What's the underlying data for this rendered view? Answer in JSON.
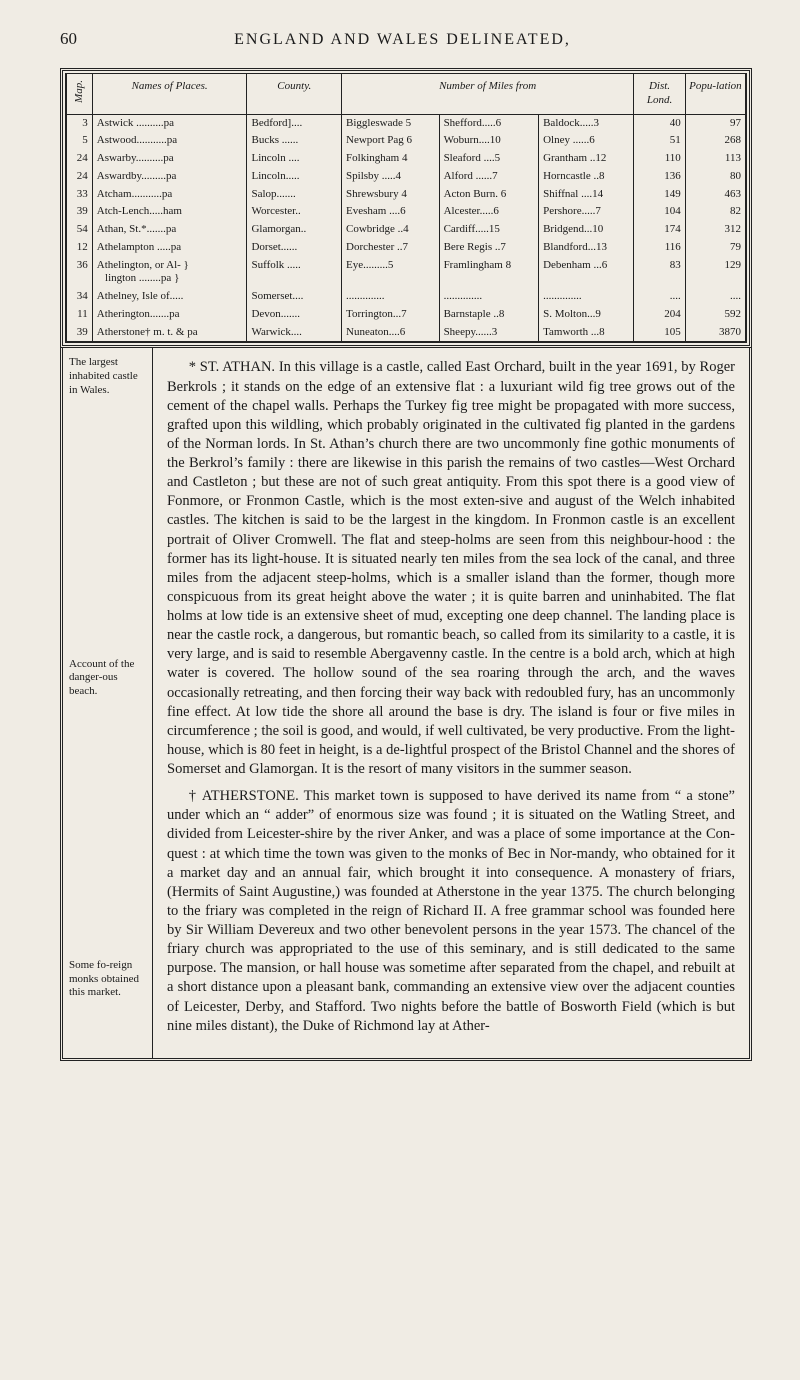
{
  "page_number": "60",
  "running_title": "ENGLAND AND WALES DELINEATED,",
  "table": {
    "headers": {
      "map": "Map.",
      "names": "Names of Places.",
      "county": "County.",
      "number": "Number of Miles from",
      "dist": "Dist. Lond.",
      "pop": "Popu-lation"
    },
    "rows": [
      {
        "map": "3",
        "name": "Astwick ..........pa",
        "county": "Bedford]....",
        "num": "Biggleswade 5 | Shefford.....6 | Baldock.....3",
        "dist": "40",
        "pop": "97"
      },
      {
        "map": "5",
        "name": "Astwood...........pa",
        "county": "Bucks ......",
        "num": "Newport Pag 6 | Woburn....10 | Olney ......6",
        "dist": "51",
        "pop": "268"
      },
      {
        "map": "24",
        "name": "Aswarby..........pa",
        "county": "Lincoln ....",
        "num": "Folkingham  4 | Sleaford ....5 | Grantham ..12",
        "dist": "110",
        "pop": "113"
      },
      {
        "map": "24",
        "name": "Aswardby.........pa",
        "county": "Lincoln.....",
        "num": "Spilsby .....4 | Alford ......7 | Horncastle ..8",
        "dist": "136",
        "pop": "80"
      },
      {
        "map": "33",
        "name": "Atcham...........pa",
        "county": "Salop.......",
        "num": "Shrewsbury 4 | Acton Burn. 6 | Shiffnal ....14",
        "dist": "149",
        "pop": "463"
      },
      {
        "map": "39",
        "name": "Atch-Lench.....ham",
        "county": "Worcester..",
        "num": "Evesham ....6 | Alcester.....6 | Pershore.....7",
        "dist": "104",
        "pop": "82"
      },
      {
        "map": "54",
        "name": "Athan, St.*.......pa",
        "county": "Glamorgan..",
        "num": "Cowbridge ..4 | Cardiff.....15 | Bridgend...10",
        "dist": "174",
        "pop": "312"
      },
      {
        "map": "12",
        "name": "Athelampton .....pa",
        "county": "Dorset......",
        "num": "Dorchester ..7 | Bere Regis ..7 | Blandford...13",
        "dist": "116",
        "pop": "79"
      },
      {
        "map": "36",
        "name": "Athelington, or Al- }\n   lington ........pa }",
        "county": "Suffolk .....",
        "num": "Eye.........5 | Framlingham 8 | Debenham ...6",
        "dist": "83",
        "pop": "129"
      },
      {
        "map": "34",
        "name": "Athelney, Isle of.....",
        "county": "Somerset....",
        "num": ".............. | .............. | ..............",
        "dist": "....",
        "pop": "...."
      },
      {
        "map": "11",
        "name": "Atherington.......pa",
        "county": "Devon.......",
        "num": "Torrington...7 | Barnstaple ..8 | S. Molton...9",
        "dist": "204",
        "pop": "592"
      },
      {
        "map": "39",
        "name": "Atherstone† m. t. & pa",
        "county": "Warwick....",
        "num": "Nuneaton....6 | Sheepy......3 | Tamworth ...8",
        "dist": "105",
        "pop": "3870"
      }
    ]
  },
  "side": {
    "block1": "The largest inhabited castle in Wales.",
    "block2": "Account of the danger-ous beach.",
    "block3": "Some fo-reign monks obtained this market."
  },
  "article": {
    "p1": "* ST. ATHAN.   In this village is a castle, called East Orchard, built in the year 1691, by Roger Berkrols ; it stands on the edge of an extensive flat : a luxuriant wild fig tree grows out of the cement of the chapel walls. Perhaps the Turkey fig tree might be propagated with more success, grafted upon this wildling, which probably originated in the cultivated fig planted in the gardens of the Norman lords.  In St. Athan’s church there are two uncommonly fine gothic monuments of the Berkrol’s family : there are likewise in this parish the remains of two castles—West Orchard and Castleton ; but these are not of such great antiquity.  From this spot there is a good view of Fonmore, or Fronmon Castle, which is the most exten-sive and august of the Welch inhabited castles.  The kitchen is said to be the largest in the kingdom.  In Fronmon castle is an excellent portrait of Oliver Cromwell.  The flat and steep-holms are seen from this neighbour-hood : the former has its light-house.  It is situated nearly ten miles from the sea lock of the canal, and three miles from the adjacent steep-holms, which is a smaller island than the former, though more conspicuous from its great height above the water ; it is quite barren and uninhabited.  The flat holms at low tide is an extensive sheet of mud, excepting one deep channel.  The landing place is near the castle rock, a dangerous, but romantic beach, so called from its similarity to a castle, it is very large, and is said to resemble Abergavenny castle.  In the centre is a bold arch, which at high water is covered.  The hollow sound of the sea roaring through the arch, and the waves occasionally retreating, and then forcing their way back with redoubled fury, has an uncommonly fine effect.  At low tide the shore all around the base is dry.  The island is four or five miles in circumference ; the soil is good, and would, if well cultivated, be very productive.  From the light-house, which is 80 feet in height, is a de-lightful prospect of the Bristol Channel and the shores of Somerset and Glamorgan.  It is the resort of many visitors in the summer season.",
    "p2": "† ATHERSTONE.  This market town is supposed to have derived its name from “ a stone” under which an “ adder” of enormous size was found ; it is situated on the Watling Street, and divided from Leicester-shire by the river Anker, and was a place of some importance at the Con-quest : at which time the town was given to the monks of Bec in Nor-mandy, who obtained for it a market day and an annual fair, which brought it into consequence.  A monastery of friars, (Hermits of Saint Augustine,) was founded at Atherstone in the year 1375.  The church belonging to the friary was completed in the reign of Richard II.  A free grammar school was founded here by Sir William Devereux and two other benevolent persons in the year 1573.  The chancel of the friary church was appropriated to the use of this seminary, and is still dedicated to the same purpose.  The mansion, or hall house was sometime after separated from the chapel, and rebuilt at a short distance upon a pleasant bank, commanding an extensive view over the adjacent counties of Leicester, Derby, and Stafford.  Two nights before the battle of Bosworth Field (which is but nine miles distant), the Duke of Richmond lay at Ather-"
  }
}
